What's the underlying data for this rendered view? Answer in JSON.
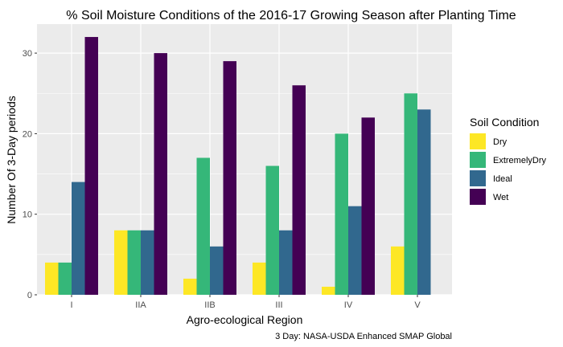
{
  "chart_data": {
    "type": "bar",
    "title": "% Soil Moisture Conditions of the 2016-17 Growing Season after Planting Time",
    "xlabel": "Agro-ecological Region",
    "ylabel": "Number Of 3-Day periods",
    "caption": "3 Day: NASA-USDA Enhanced SMAP Global",
    "categories": [
      "I",
      "IIA",
      "IIB",
      "III",
      "IV",
      "V"
    ],
    "ylim": [
      0,
      33.6
    ],
    "yticks": [
      0,
      10,
      20,
      30
    ],
    "grid": true,
    "legend": {
      "title": "Soil Condition",
      "position": "right"
    },
    "series": [
      {
        "name": "Dry",
        "color": "#FDE725",
        "values": [
          4,
          8,
          2,
          4,
          1,
          6
        ]
      },
      {
        "name": "ExtremelyDry",
        "color": "#35B779",
        "values": [
          4,
          8,
          17,
          16,
          20,
          25
        ]
      },
      {
        "name": "Ideal",
        "color": "#31688E",
        "values": [
          14,
          8,
          6,
          8,
          11,
          23
        ]
      },
      {
        "name": "Wet",
        "color": "#440154",
        "values": [
          32,
          30,
          29,
          26,
          22,
          0
        ]
      }
    ]
  },
  "colors": {
    "panel_background": "#EBEBEB",
    "grid_major": "#FFFFFF"
  }
}
